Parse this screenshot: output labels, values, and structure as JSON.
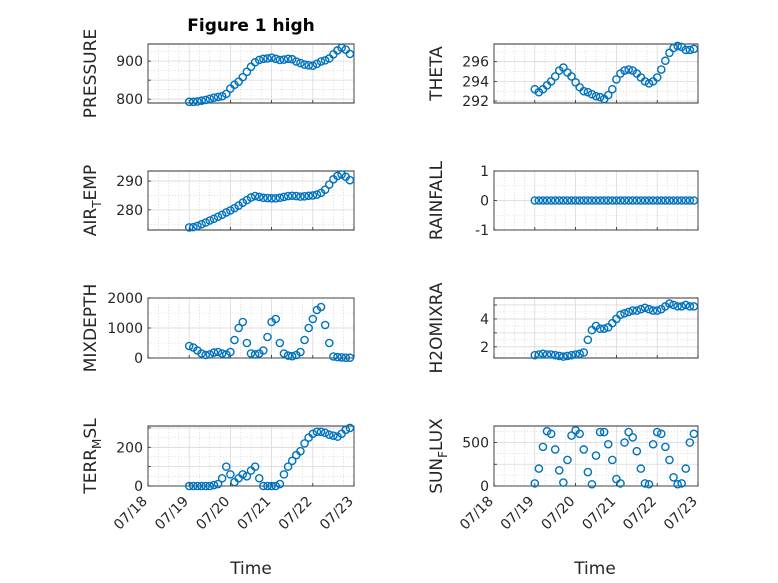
{
  "figure_title": "Figure 1 high",
  "xlabel": "Time",
  "x_ticks": [
    "07/18",
    "07/19",
    "07/20",
    "07/21",
    "07/22",
    "07/23"
  ],
  "marker_color": "#0072bd",
  "chart_data": [
    {
      "type": "scatter",
      "id": "pressure",
      "ylabel": "PRESSURE",
      "ylim": [
        790,
        945
      ],
      "yticks": [
        800,
        850,
        900
      ],
      "ytick_labels": [
        "800",
        "",
        "900"
      ],
      "xlim": [
        18,
        23
      ],
      "grid": true,
      "series": [
        {
          "x": [
            19.0,
            19.1,
            19.2,
            19.3,
            19.4,
            19.5,
            19.6,
            19.7,
            19.8,
            19.9,
            20.0,
            20.1,
            20.2,
            20.3,
            20.4,
            20.5,
            20.6,
            20.7,
            20.8,
            20.9,
            21.0,
            21.1,
            21.2,
            21.3,
            21.4,
            21.5,
            21.6,
            21.7,
            21.8,
            21.9,
            22.0,
            22.1,
            22.2,
            22.3,
            22.4,
            22.5,
            22.6,
            22.7,
            22.8,
            22.9
          ],
          "y": [
            793,
            793,
            794,
            796,
            798,
            801,
            804,
            806,
            808,
            814,
            828,
            838,
            846,
            858,
            872,
            885,
            897,
            903,
            906,
            907,
            909,
            906,
            903,
            904,
            906,
            905,
            899,
            895,
            891,
            889,
            888,
            893,
            899,
            902,
            907,
            918,
            928,
            935,
            930,
            919
          ]
        }
      ]
    },
    {
      "type": "scatter",
      "id": "theta",
      "ylabel": "THETA",
      "ylim": [
        291.8,
        297.8
      ],
      "yticks": [
        292,
        294,
        296
      ],
      "ytick_labels": [
        "292",
        "294",
        "296"
      ],
      "xlim": [
        18,
        23
      ],
      "grid": true,
      "series": [
        {
          "x": [
            19.0,
            19.1,
            19.2,
            19.3,
            19.4,
            19.5,
            19.6,
            19.7,
            19.8,
            19.9,
            20.0,
            20.1,
            20.2,
            20.3,
            20.4,
            20.5,
            20.6,
            20.7,
            20.8,
            20.9,
            21.0,
            21.1,
            21.2,
            21.3,
            21.4,
            21.5,
            21.6,
            21.7,
            21.8,
            21.9,
            22.0,
            22.1,
            22.2,
            22.3,
            22.4,
            22.5,
            22.6,
            22.7,
            22.8,
            22.9
          ],
          "y": [
            293.2,
            292.9,
            293.2,
            293.6,
            294.0,
            294.5,
            295.1,
            295.4,
            294.9,
            294.5,
            293.9,
            293.4,
            293.0,
            292.9,
            292.7,
            292.5,
            292.4,
            292.2,
            292.6,
            293.2,
            294.2,
            294.8,
            295.1,
            295.2,
            295.1,
            294.8,
            294.4,
            294.0,
            293.8,
            294.0,
            294.4,
            295.2,
            296.1,
            296.9,
            297.4,
            297.6,
            297.5,
            297.2,
            297.2,
            297.3
          ]
        }
      ]
    },
    {
      "type": "scatter",
      "id": "air_temp",
      "ylabel": "AIR",
      "ylabel_sub": "T",
      "ylabel_rest": "EMP",
      "ylim": [
        273,
        293.5
      ],
      "yticks": [
        280,
        290
      ],
      "ytick_labels": [
        "280",
        "290"
      ],
      "xlim": [
        18,
        23
      ],
      "grid": true,
      "series": [
        {
          "x": [
            19.0,
            19.1,
            19.2,
            19.3,
            19.4,
            19.5,
            19.6,
            19.7,
            19.8,
            19.9,
            20.0,
            20.1,
            20.2,
            20.3,
            20.4,
            20.5,
            20.6,
            20.7,
            20.8,
            20.9,
            21.0,
            21.1,
            21.2,
            21.3,
            21.4,
            21.5,
            21.6,
            21.7,
            21.8,
            21.9,
            22.0,
            22.1,
            22.2,
            22.3,
            22.4,
            22.5,
            22.6,
            22.7,
            22.8,
            22.9
          ],
          "y": [
            273.9,
            274.0,
            274.4,
            275.0,
            275.6,
            276.3,
            276.9,
            277.6,
            278.3,
            279.1,
            279.8,
            280.6,
            281.5,
            282.5,
            283.4,
            284.3,
            284.8,
            284.5,
            284.2,
            284.1,
            284.0,
            284.0,
            284.2,
            284.5,
            284.8,
            284.9,
            284.8,
            284.6,
            284.7,
            284.9,
            285.0,
            285.3,
            285.9,
            287.0,
            288.8,
            290.6,
            291.8,
            292.3,
            291.5,
            290.3
          ]
        }
      ]
    },
    {
      "type": "scatter",
      "id": "rainfall",
      "ylabel": "RAINFALL",
      "ylim": [
        -1,
        1
      ],
      "yticks": [
        -1,
        0,
        1
      ],
      "ytick_labels": [
        "-1",
        "0",
        "1"
      ],
      "xlim": [
        18,
        23
      ],
      "grid": true,
      "series": [
        {
          "x": [
            19.0,
            19.1,
            19.2,
            19.3,
            19.4,
            19.5,
            19.6,
            19.7,
            19.8,
            19.9,
            20.0,
            20.1,
            20.2,
            20.3,
            20.4,
            20.5,
            20.6,
            20.7,
            20.8,
            20.9,
            21.0,
            21.1,
            21.2,
            21.3,
            21.4,
            21.5,
            21.6,
            21.7,
            21.8,
            21.9,
            22.0,
            22.1,
            22.2,
            22.3,
            22.4,
            22.5,
            22.6,
            22.7,
            22.8,
            22.9
          ],
          "y": [
            0,
            0,
            0,
            0,
            0,
            0,
            0,
            0,
            0,
            0,
            0,
            0,
            0,
            0,
            0,
            0,
            0,
            0,
            0,
            0,
            0,
            0,
            0,
            0,
            0,
            0,
            0,
            0,
            0,
            0,
            0,
            0,
            0,
            0,
            0,
            0,
            0,
            0,
            0,
            0
          ]
        }
      ]
    },
    {
      "type": "scatter",
      "id": "mixdepth",
      "ylabel": "MIXDEPTH",
      "ylim": [
        0,
        2000
      ],
      "yticks": [
        0,
        1000,
        2000
      ],
      "ytick_labels": [
        "0",
        "1000",
        "2000"
      ],
      "xlim": [
        18,
        23
      ],
      "grid": true,
      "series": [
        {
          "x": [
            19.0,
            19.1,
            19.2,
            19.3,
            19.4,
            19.5,
            19.6,
            19.7,
            19.8,
            19.9,
            20.0,
            20.1,
            20.2,
            20.3,
            20.4,
            20.5,
            20.6,
            20.7,
            20.8,
            20.9,
            21.0,
            21.1,
            21.2,
            21.3,
            21.4,
            21.5,
            21.6,
            21.7,
            21.8,
            21.9,
            22.0,
            22.1,
            22.2,
            22.3,
            22.4,
            22.5,
            22.6,
            22.7,
            22.8,
            22.9
          ],
          "y": [
            400,
            350,
            250,
            150,
            100,
            120,
            180,
            200,
            150,
            120,
            200,
            600,
            1000,
            1200,
            500,
            150,
            120,
            150,
            250,
            700,
            1200,
            1300,
            500,
            150,
            80,
            60,
            100,
            200,
            600,
            1000,
            1300,
            1600,
            1700,
            1100,
            500,
            50,
            30,
            20,
            10,
            10
          ]
        }
      ]
    },
    {
      "type": "scatter",
      "id": "h2omixra",
      "ylabel": "H2OMIXRA",
      "ylim": [
        1.2,
        5.5
      ],
      "yticks": [
        2,
        3,
        4,
        5
      ],
      "ytick_labels": [
        "2",
        "",
        "4",
        ""
      ],
      "xlim": [
        18,
        23
      ],
      "grid": true,
      "series": [
        {
          "x": [
            19.0,
            19.1,
            19.2,
            19.3,
            19.4,
            19.5,
            19.6,
            19.7,
            19.8,
            19.9,
            20.0,
            20.1,
            20.2,
            20.3,
            20.4,
            20.5,
            20.6,
            20.7,
            20.8,
            20.9,
            21.0,
            21.1,
            21.2,
            21.3,
            21.4,
            21.5,
            21.6,
            21.7,
            21.8,
            21.9,
            22.0,
            22.1,
            22.2,
            22.3,
            22.4,
            22.5,
            22.6,
            22.7,
            22.8,
            22.9
          ],
          "y": [
            1.4,
            1.45,
            1.5,
            1.45,
            1.45,
            1.4,
            1.35,
            1.3,
            1.35,
            1.4,
            1.45,
            1.5,
            1.6,
            2.5,
            3.2,
            3.5,
            3.3,
            3.3,
            3.4,
            3.7,
            4.0,
            4.3,
            4.4,
            4.5,
            4.6,
            4.6,
            4.7,
            4.8,
            4.7,
            4.6,
            4.6,
            4.7,
            4.9,
            5.1,
            5.0,
            4.9,
            4.9,
            5.0,
            4.9,
            4.9
          ]
        }
      ]
    },
    {
      "type": "scatter",
      "id": "terr_msl",
      "ylabel": "TERR",
      "ylabel_sub": "M",
      "ylabel_rest": "SL",
      "ylim": [
        0,
        310
      ],
      "yticks": [
        0,
        100,
        200,
        300
      ],
      "ytick_labels": [
        "0",
        "",
        "200",
        ""
      ],
      "xlim": [
        18,
        23
      ],
      "grid": true,
      "series": [
        {
          "x": [
            19.0,
            19.1,
            19.2,
            19.3,
            19.4,
            19.5,
            19.6,
            19.7,
            19.8,
            19.9,
            20.0,
            20.1,
            20.2,
            20.3,
            20.4,
            20.5,
            20.6,
            20.7,
            20.8,
            20.9,
            21.0,
            21.1,
            21.2,
            21.3,
            21.4,
            21.5,
            21.6,
            21.7,
            21.8,
            21.9,
            22.0,
            22.1,
            22.2,
            22.3,
            22.4,
            22.5,
            22.6,
            22.7,
            22.8,
            22.9
          ],
          "y": [
            0,
            0,
            0,
            0,
            0,
            0,
            5,
            10,
            40,
            100,
            60,
            20,
            40,
            60,
            50,
            80,
            100,
            40,
            0,
            0,
            0,
            0,
            10,
            60,
            100,
            130,
            160,
            180,
            220,
            250,
            270,
            280,
            280,
            275,
            265,
            260,
            255,
            270,
            290,
            300
          ]
        }
      ]
    },
    {
      "type": "scatter",
      "id": "sun_flux",
      "ylabel": "SUN",
      "ylabel_sub": "F",
      "ylabel_rest": "LUX",
      "ylim": [
        0,
        690
      ],
      "yticks": [
        0,
        250,
        500
      ],
      "ytick_labels": [
        "0",
        "",
        "500"
      ],
      "xlim": [
        18,
        23
      ],
      "grid": true,
      "series": [
        {
          "x": [
            19.0,
            19.1,
            19.2,
            19.3,
            19.4,
            19.5,
            19.6,
            19.7,
            19.8,
            19.9,
            20.0,
            20.1,
            20.2,
            20.3,
            20.4,
            20.5,
            20.6,
            20.7,
            20.8,
            20.9,
            21.0,
            21.1,
            21.2,
            21.3,
            21.4,
            21.5,
            21.6,
            21.7,
            21.8,
            21.9,
            22.0,
            22.1,
            22.2,
            22.3,
            22.4,
            22.5,
            22.6,
            22.7,
            22.8,
            22.9
          ],
          "y": [
            30,
            200,
            450,
            630,
            600,
            420,
            180,
            40,
            300,
            580,
            640,
            600,
            420,
            160,
            20,
            350,
            620,
            620,
            480,
            300,
            80,
            30,
            500,
            620,
            560,
            400,
            200,
            30,
            20,
            480,
            620,
            600,
            450,
            300,
            100,
            20,
            30,
            200,
            500,
            600
          ]
        }
      ]
    }
  ]
}
